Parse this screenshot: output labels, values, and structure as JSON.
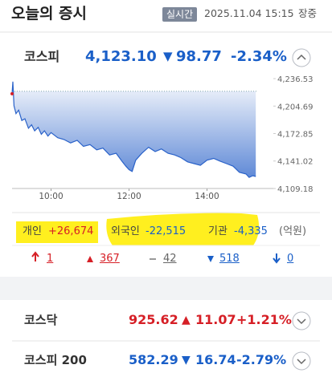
{
  "header": {
    "title": "오늘의 증시",
    "badge": "실시간",
    "datetime": "2025.11.04 15:15",
    "status": "장중"
  },
  "kospi": {
    "name": "코스피",
    "value": "4,123.10",
    "change": "98.77",
    "rate": "-2.34%",
    "direction": "down"
  },
  "chart_data": {
    "type": "line",
    "x": [
      9.0,
      9.02,
      9.05,
      9.1,
      9.17,
      9.25,
      9.33,
      9.42,
      9.5,
      9.58,
      9.67,
      9.75,
      9.83,
      9.92,
      10.0,
      10.17,
      10.33,
      10.5,
      10.67,
      10.83,
      11.0,
      11.17,
      11.33,
      11.5,
      11.67,
      11.83,
      11.92,
      12.0,
      12.08,
      12.17,
      12.33,
      12.5,
      12.67,
      12.83,
      13.0,
      13.17,
      13.33,
      13.5,
      13.67,
      13.83,
      14.0,
      14.17,
      14.33,
      14.5,
      14.67,
      14.83,
      15.0,
      15.08,
      15.17,
      15.25
    ],
    "series": [
      {
        "color": "#2a62c9",
        "values": [
          4219,
          4233,
          4205,
          4196,
          4200,
          4188,
          4190,
          4179,
          4183,
          4176,
          4180,
          4172,
          4176,
          4170,
          4174,
          4168,
          4166,
          4162,
          4165,
          4158,
          4160,
          4154,
          4156,
          4148,
          4150,
          4140,
          4135,
          4131,
          4129,
          4142,
          4150,
          4157,
          4152,
          4155,
          4150,
          4148,
          4145,
          4140,
          4138,
          4136,
          4142,
          4144,
          4141,
          4138,
          4135,
          4128,
          4126,
          4122,
          4124,
          4123.1
        ]
      }
    ],
    "baseline": 4221.87,
    "xlim": [
      9,
      15.7
    ],
    "xticks": [
      {
        "value": 10,
        "label": "10:00"
      },
      {
        "value": 12,
        "label": "12:00"
      },
      {
        "value": 14,
        "label": "14:00"
      }
    ],
    "ylim": [
      4109.18,
      4236.53
    ],
    "yticks": [
      {
        "value": 4236.53,
        "label": "4,236.53"
      },
      {
        "value": 4204.69,
        "label": "4,204.69"
      },
      {
        "value": 4172.85,
        "label": "4,172.85"
      },
      {
        "value": 4141.02,
        "label": "4,141.02"
      },
      {
        "value": 4109.18,
        "label": "4,109.18"
      }
    ]
  },
  "investors": {
    "items": [
      {
        "name": "개인",
        "value": "+26,674",
        "direction": "up"
      },
      {
        "name": "외국인",
        "value": "-22,515",
        "direction": "down"
      },
      {
        "name": "기관",
        "value": "-4,335",
        "direction": "down"
      }
    ],
    "unit": "(억원)"
  },
  "breadth": {
    "upper_limit": "1",
    "up": "367",
    "flat": "42",
    "down": "518",
    "lower_limit": "0"
  },
  "indices": [
    {
      "name": "코스닥",
      "value": "925.62",
      "change": "11.07",
      "rate": "+1.21%",
      "direction": "up"
    },
    {
      "name": "코스피 200",
      "value": "582.29",
      "change": "16.74",
      "rate": "-2.79%",
      "direction": "down"
    }
  ]
}
